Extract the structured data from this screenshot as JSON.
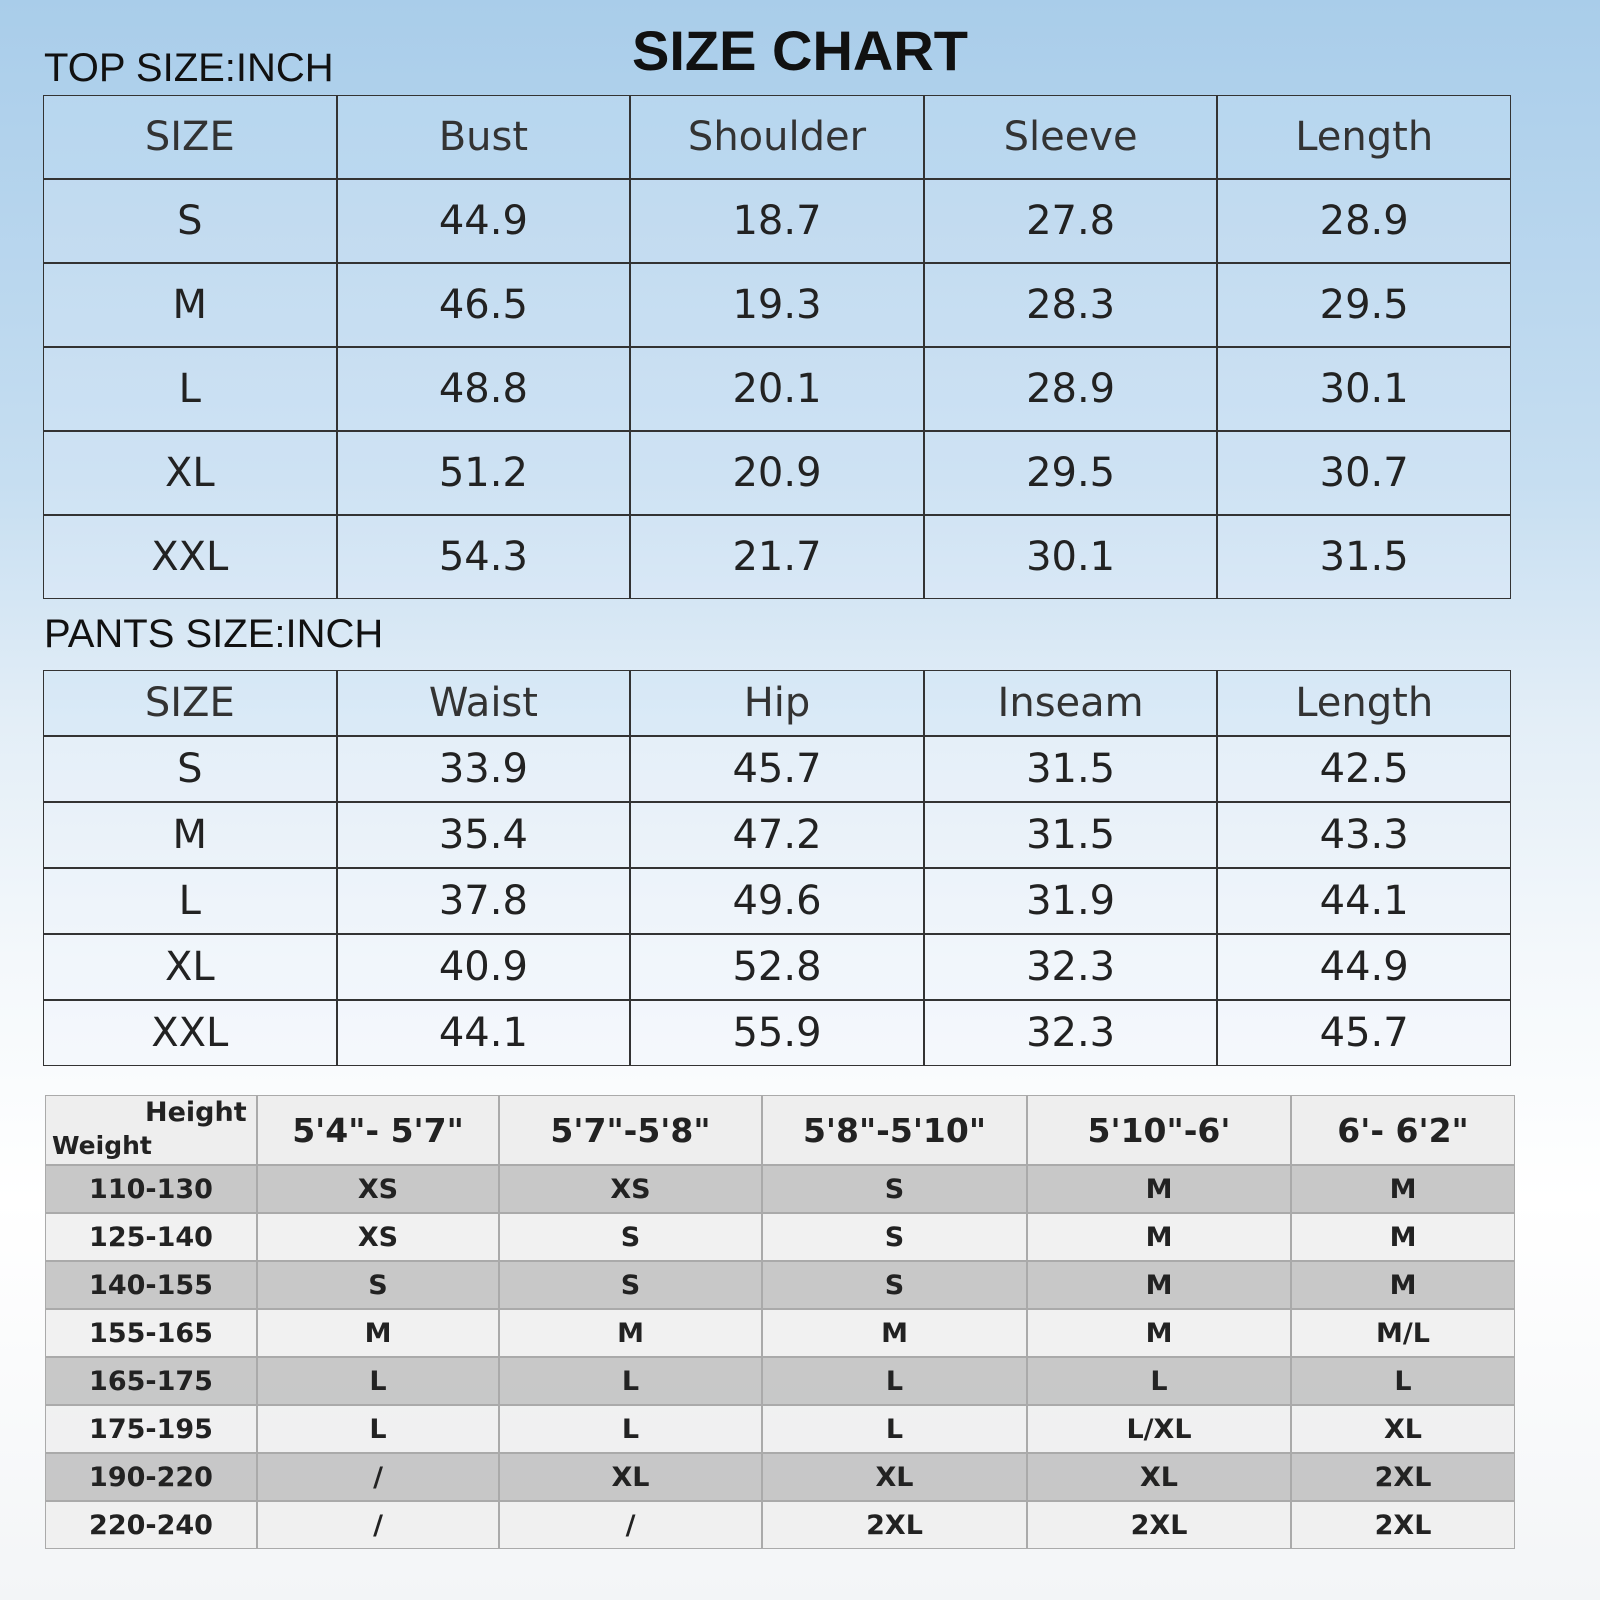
{
  "title": "SIZE CHART",
  "top": {
    "label": "TOP SIZE:INCH",
    "header": [
      "SIZE",
      "Bust",
      "Shoulder",
      "Sleeve",
      "Length"
    ],
    "rows": [
      [
        "S",
        "44.9",
        "18.7",
        "27.8",
        "28.9"
      ],
      [
        "M",
        "46.5",
        "19.3",
        "28.3",
        "29.5"
      ],
      [
        "L",
        "48.8",
        "20.1",
        "28.9",
        "30.1"
      ],
      [
        "XL",
        "51.2",
        "20.9",
        "29.5",
        "30.7"
      ],
      [
        "XXL",
        "54.3",
        "21.7",
        "30.1",
        "31.5"
      ]
    ]
  },
  "pants": {
    "label": "PANTS SIZE:INCH",
    "header": [
      "SIZE",
      "Waist",
      "Hip",
      "Inseam",
      "Length"
    ],
    "rows": [
      [
        "S",
        "33.9",
        "45.7",
        "31.5",
        "42.5"
      ],
      [
        "M",
        "35.4",
        "47.2",
        "31.5",
        "43.3"
      ],
      [
        "L",
        "37.8",
        "49.6",
        "31.9",
        "44.1"
      ],
      [
        "XL",
        "40.9",
        "52.8",
        "32.3",
        "44.9"
      ],
      [
        "XXL",
        "44.1",
        "55.9",
        "32.3",
        "45.7"
      ]
    ]
  },
  "fit": {
    "corner": {
      "height": "Height",
      "weight": "Weight"
    },
    "header": [
      "5'4\"- 5'7\"",
      "5'7\"-5'8\"",
      "5'8\"-5'10\"",
      "5'10\"-6'",
      "6'- 6'2\""
    ],
    "rows": [
      [
        "110-130",
        "XS",
        "XS",
        "S",
        "M",
        "M"
      ],
      [
        "125-140",
        "XS",
        "S",
        "S",
        "M",
        "M"
      ],
      [
        "140-155",
        "S",
        "S",
        "S",
        "M",
        "M"
      ],
      [
        "155-165",
        "M",
        "M",
        "M",
        "M",
        "M/L"
      ],
      [
        "165-175",
        "L",
        "L",
        "L",
        "L",
        "L"
      ],
      [
        "175-195",
        "L",
        "L",
        "L",
        "L/XL",
        "XL"
      ],
      [
        "190-220",
        "/",
        "XL",
        "XL",
        "XL",
        "2XL"
      ],
      [
        "220-240",
        "/",
        "/",
        "2XL",
        "2XL",
        "2XL"
      ]
    ]
  }
}
